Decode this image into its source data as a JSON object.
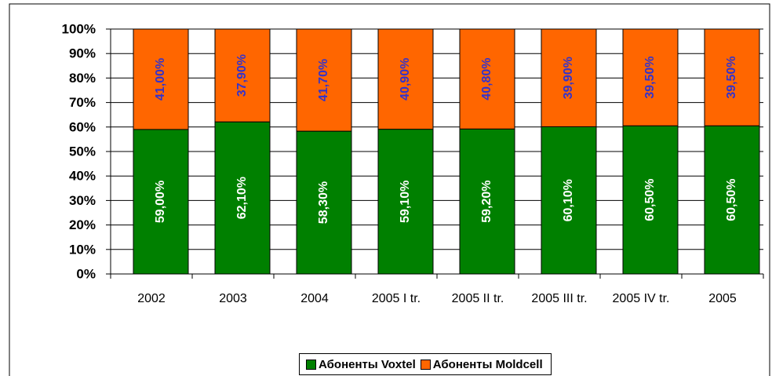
{
  "chart_data": {
    "type": "bar",
    "stacked": true,
    "categories": [
      "2002",
      "2003",
      "2004",
      "2005 I tr.",
      "2005 II tr.",
      "2005 III tr.",
      "2005 IV tr.",
      "2005"
    ],
    "series": [
      {
        "name": "Абоненты Voxtel",
        "color": "#008000",
        "label_color": "#ffffff",
        "values": [
          59,
          62.1,
          58.3,
          59.1,
          59.2,
          60.1,
          60.5,
          60.5
        ],
        "value_labels": [
          "59,00%",
          "62,10%",
          "58,30%",
          "59,10%",
          "59,20%",
          "60,10%",
          "60,50%",
          "60,50%"
        ]
      },
      {
        "name": "Абоненты Moldcell",
        "color": "#ff6600",
        "label_color": "#3333cc",
        "values": [
          41,
          37.9,
          41.7,
          40.9,
          40.8,
          39.9,
          39.5,
          39.5
        ],
        "value_labels": [
          "41,00%",
          "37,90%",
          "41,70%",
          "40,90%",
          "40,80%",
          "39,90%",
          "39,50%",
          "39,50%"
        ]
      }
    ],
    "ylim": [
      0,
      100
    ],
    "yticks": [
      {
        "value": 0,
        "label": "0%"
      },
      {
        "value": 10,
        "label": "10%"
      },
      {
        "value": 20,
        "label": "20%"
      },
      {
        "value": 30,
        "label": "30%"
      },
      {
        "value": 40,
        "label": "40%"
      },
      {
        "value": 50,
        "label": "50%"
      },
      {
        "value": 60,
        "label": "60%"
      },
      {
        "value": 70,
        "label": "70%"
      },
      {
        "value": 80,
        "label": "80%"
      },
      {
        "value": 90,
        "label": "90%"
      },
      {
        "value": 100,
        "label": "100%"
      }
    ],
    "grid": true,
    "legend": "bottom"
  }
}
